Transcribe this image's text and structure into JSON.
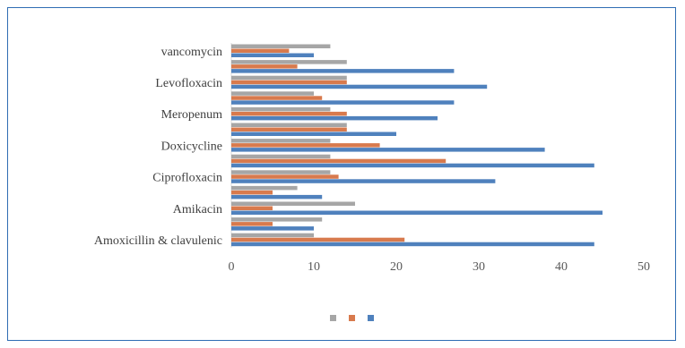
{
  "chart_data": {
    "type": "bar",
    "orientation": "horizontal",
    "title": "",
    "xlabel": "",
    "ylabel": "",
    "xlim": [
      0,
      50
    ],
    "xticks": [
      0,
      10,
      20,
      30,
      40,
      50
    ],
    "grid": false,
    "legend_position": "bottom",
    "category_labels_shown": [
      "Amoxicillin & clavulenic",
      "Amikacin",
      "Ciprofloxacin",
      "Doxicycline",
      "Meropenum",
      "Levofloxacin",
      "vancomycin"
    ],
    "categories": [
      "Amoxicillin & clavulenic",
      "",
      "Amikacin",
      "",
      "Ciprofloxacin",
      "",
      "Doxicycline",
      "",
      "Meropenum",
      "",
      "Levofloxacin",
      "",
      "vancomycin"
    ],
    "series": [
      {
        "color": "#4f81bd",
        "values": [
          44,
          10,
          45,
          11,
          32,
          44,
          38,
          20,
          25,
          27,
          31,
          27,
          10
        ]
      },
      {
        "color": "#d87a4d",
        "values": [
          21,
          5,
          5,
          5,
          13,
          26,
          18,
          14,
          14,
          11,
          14,
          8,
          7
        ]
      },
      {
        "color": "#a6a6a6",
        "values": [
          10,
          11,
          15,
          8,
          12,
          12,
          12,
          14,
          12,
          10,
          14,
          14,
          12
        ]
      }
    ]
  }
}
